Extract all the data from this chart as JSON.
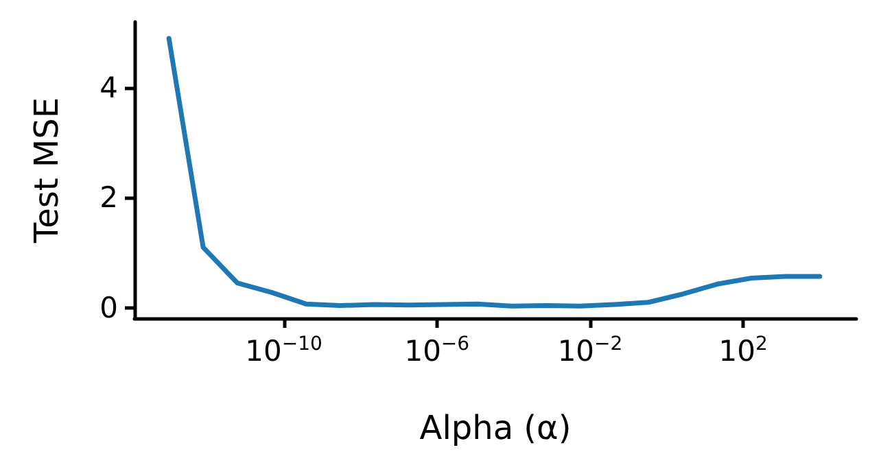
{
  "chart_data": {
    "type": "line",
    "xlabel": "Alpha (α)",
    "ylabel": "Test MSE",
    "log": "x",
    "grid": false,
    "marker": "none",
    "line_style": "solid",
    "x": [
      1e-13,
      7.85e-13,
      6.16e-12,
      4.83e-11,
      3.79e-10,
      2.98e-09,
      2.34e-08,
      1.83e-07,
      1.44e-06,
      1.13e-05,
      8.86e-05,
      0.000695,
      0.00546,
      0.0428,
      0.336,
      2.64,
      20.7,
      163,
      1274,
      10000
    ],
    "series": [
      {
        "color": "#1f77b4",
        "values": [
          4.9,
          1.1,
          0.45,
          0.28,
          0.07,
          0.04,
          0.06,
          0.05,
          0.06,
          0.07,
          0.03,
          0.04,
          0.03,
          0.06,
          0.1,
          0.25,
          0.43,
          0.54,
          0.57,
          0.57
        ]
      }
    ],
    "xlim": [
      1.26e-14,
      90000
    ],
    "xticks": [
      {
        "value": 1e-10,
        "label": "10$^{−10}$"
      },
      {
        "value": 1e-06,
        "label": "10$^{−6}$"
      },
      {
        "value": 0.01,
        "label": "10$^{−2}$"
      },
      {
        "value": 100,
        "label": "10$^{2}$"
      }
    ],
    "ylim": [
      -0.19,
      5.2
    ],
    "yticks": [
      0,
      2,
      4
    ]
  }
}
